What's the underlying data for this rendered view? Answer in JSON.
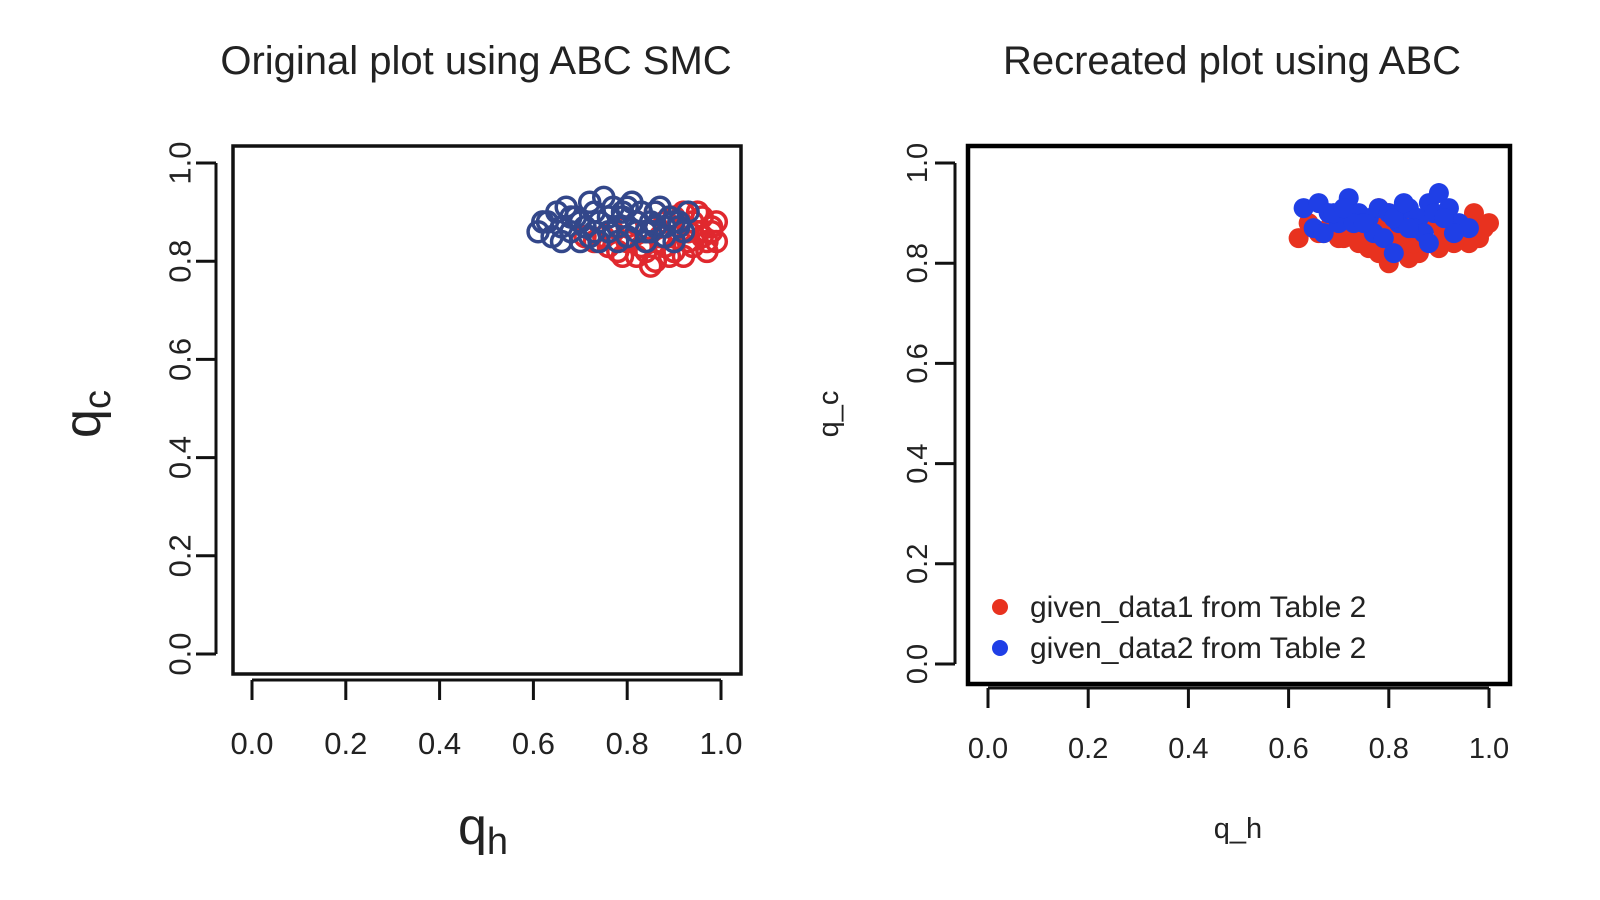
{
  "chart_data": [
    {
      "type": "scatter",
      "title": "Original plot using ABC SMC",
      "xlabel": "q",
      "xlabel_sub": "h",
      "ylabel": "q",
      "ylabel_sub": "c",
      "xlim": [
        0,
        1
      ],
      "ylim": [
        0,
        1
      ],
      "xticks": [
        "0.0",
        "0.2",
        "0.4",
        "0.6",
        "0.8",
        "1.0"
      ],
      "yticks": [
        "0.0",
        "0.2",
        "0.4",
        "0.6",
        "0.8",
        "1.0"
      ],
      "marker": "open-circle",
      "grid": false,
      "legend": null,
      "series": [
        {
          "color": "#e0282e",
          "x": [
            0.78,
            0.82,
            0.86,
            0.9,
            0.94,
            0.97,
            0.98,
            0.99,
            0.96,
            0.92,
            0.88,
            0.84,
            0.8,
            0.76,
            0.73,
            0.85,
            0.89,
            0.93,
            0.95,
            0.91,
            0.87,
            0.83,
            0.79,
            0.75,
            0.97,
            0.99,
            0.94,
            0.9,
            0.86,
            0.82,
            0.88,
            0.92,
            0.96,
            0.98,
            0.8,
            0.84,
            0.77,
            0.71,
            0.95,
            0.93
          ],
          "y": [
            0.82,
            0.81,
            0.8,
            0.82,
            0.83,
            0.84,
            0.86,
            0.88,
            0.89,
            0.9,
            0.88,
            0.86,
            0.84,
            0.83,
            0.84,
            0.79,
            0.81,
            0.84,
            0.86,
            0.87,
            0.85,
            0.83,
            0.81,
            0.85,
            0.82,
            0.84,
            0.88,
            0.89,
            0.9,
            0.88,
            0.83,
            0.81,
            0.85,
            0.87,
            0.87,
            0.82,
            0.86,
            0.85,
            0.9,
            0.86
          ]
        },
        {
          "color": "#33478a",
          "x": [
            0.61,
            0.63,
            0.65,
            0.67,
            0.69,
            0.71,
            0.73,
            0.75,
            0.77,
            0.79,
            0.81,
            0.83,
            0.85,
            0.87,
            0.89,
            0.91,
            0.93,
            0.64,
            0.66,
            0.68,
            0.7,
            0.72,
            0.74,
            0.76,
            0.78,
            0.8,
            0.82,
            0.84,
            0.86,
            0.88,
            0.9,
            0.92,
            0.62,
            0.66,
            0.7,
            0.74,
            0.78,
            0.82,
            0.86,
            0.9,
            0.72,
            0.76,
            0.8,
            0.84,
            0.88,
            0.68,
            0.73,
            0.79,
            0.85,
            0.91
          ],
          "y": [
            0.86,
            0.88,
            0.9,
            0.91,
            0.89,
            0.87,
            0.9,
            0.93,
            0.91,
            0.89,
            0.92,
            0.9,
            0.88,
            0.91,
            0.89,
            0.87,
            0.9,
            0.85,
            0.87,
            0.86,
            0.88,
            0.85,
            0.84,
            0.86,
            0.87,
            0.85,
            0.86,
            0.84,
            0.87,
            0.85,
            0.88,
            0.86,
            0.88,
            0.84,
            0.84,
            0.88,
            0.84,
            0.88,
            0.9,
            0.84,
            0.92,
            0.89,
            0.91,
            0.86,
            0.87,
            0.89,
            0.86,
            0.9,
            0.86,
            0.88
          ]
        }
      ]
    },
    {
      "type": "scatter",
      "title": "Recreated plot using ABC",
      "xlabel": "q_h",
      "ylabel": "q_c",
      "xlim": [
        0,
        1
      ],
      "ylim": [
        0,
        1
      ],
      "xticks": [
        "0.0",
        "0.2",
        "0.4",
        "0.6",
        "0.8",
        "1.0"
      ],
      "yticks": [
        "0.0",
        "0.2",
        "0.4",
        "0.6",
        "0.8",
        "1.0"
      ],
      "marker": "filled-circle",
      "grid": false,
      "legend": "bottom-left",
      "series": [
        {
          "name": "given_data1 from Table 2",
          "color": "#e8321f",
          "x": [
            0.62,
            0.64,
            0.66,
            0.68,
            0.7,
            0.72,
            0.74,
            0.76,
            0.78,
            0.8,
            0.82,
            0.84,
            0.86,
            0.88,
            0.9,
            0.92,
            0.94,
            0.96,
            0.98,
            1.0,
            0.97,
            0.95,
            0.93,
            0.91,
            0.89,
            0.87,
            0.85,
            0.83,
            0.81,
            0.79,
            0.77,
            0.75,
            0.73,
            0.71,
            0.69,
            0.67,
            0.8,
            0.82,
            0.78,
            0.99
          ],
          "y": [
            0.85,
            0.88,
            0.86,
            0.87,
            0.85,
            0.86,
            0.84,
            0.83,
            0.82,
            0.8,
            0.83,
            0.81,
            0.82,
            0.84,
            0.83,
            0.85,
            0.86,
            0.84,
            0.85,
            0.88,
            0.9,
            0.87,
            0.84,
            0.86,
            0.88,
            0.85,
            0.84,
            0.86,
            0.85,
            0.87,
            0.88,
            0.86,
            0.87,
            0.85,
            0.88,
            0.86,
            0.9,
            0.89,
            0.91,
            0.87
          ]
        },
        {
          "name": "given_data2 from Table 2",
          "color": "#1f3fe6",
          "x": [
            0.63,
            0.66,
            0.68,
            0.7,
            0.72,
            0.74,
            0.76,
            0.78,
            0.8,
            0.82,
            0.84,
            0.86,
            0.88,
            0.9,
            0.92,
            0.94,
            0.96,
            0.65,
            0.69,
            0.73,
            0.77,
            0.81,
            0.85,
            0.89,
            0.93,
            0.71,
            0.75,
            0.79,
            0.83,
            0.87,
            0.91,
            0.67,
            0.81,
            0.84,
            0.88
          ],
          "y": [
            0.91,
            0.92,
            0.9,
            0.88,
            0.93,
            0.9,
            0.89,
            0.91,
            0.9,
            0.88,
            0.91,
            0.89,
            0.92,
            0.94,
            0.91,
            0.88,
            0.87,
            0.87,
            0.9,
            0.88,
            0.86,
            0.89,
            0.87,
            0.9,
            0.86,
            0.91,
            0.88,
            0.85,
            0.92,
            0.86,
            0.89,
            0.86,
            0.82,
            0.87,
            0.84
          ]
        }
      ]
    }
  ]
}
